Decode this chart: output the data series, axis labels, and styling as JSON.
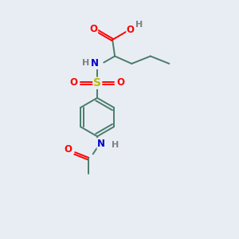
{
  "bg_color": "#e8edf4",
  "bond_color": "#4a7c6a",
  "bond_width": 1.4,
  "O_color": "#ff0000",
  "N_color": "#0000cc",
  "S_color": "#bbbb00",
  "H_color": "#808080",
  "font_size": 8.5,
  "figsize": [
    3.0,
    3.0
  ],
  "dpi": 100,
  "xlim": [
    0,
    10
  ],
  "ylim": [
    0,
    10
  ]
}
